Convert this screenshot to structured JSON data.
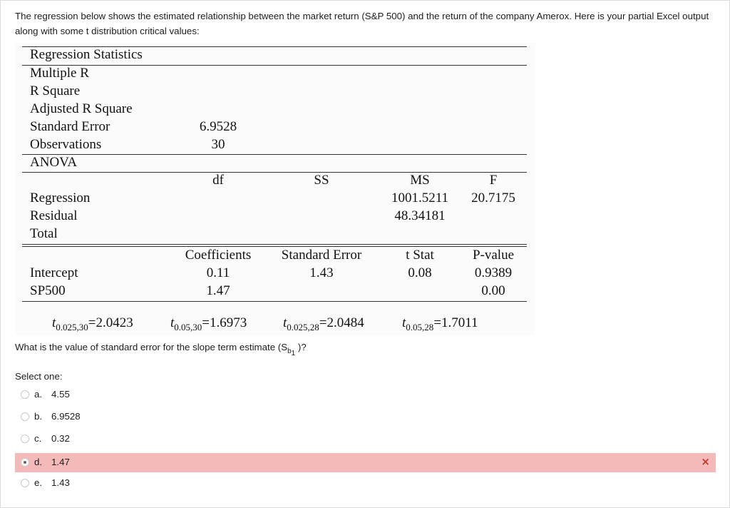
{
  "question": {
    "intro": "The regression below shows the estimated relationship between the market return (S&P 500) and the return of the company Amerox. Here is your partial Excel output along with some t distribution critical values:",
    "prompt_before": "What is the value of standard error for the slope term estimate (S",
    "prompt_sub": "b",
    "prompt_subsub": "1",
    "prompt_after": " )?",
    "select_label": "Select one:"
  },
  "regression_table": {
    "stats_header": "Regression Statistics",
    "stats_rows": [
      {
        "label": "Multiple R",
        "value": ""
      },
      {
        "label": "R Square",
        "value": ""
      },
      {
        "label": "Adjusted R Square",
        "value": ""
      },
      {
        "label": "Standard Error",
        "value": "6.9528"
      },
      {
        "label": "Observations",
        "value": "30"
      }
    ],
    "anova_header": "ANOVA",
    "anova_columns": [
      "df",
      "SS",
      "MS",
      "F"
    ],
    "anova_rows": [
      {
        "label": "Regression",
        "df": "",
        "ss": "",
        "ms": "1001.5211",
        "f": "20.7175"
      },
      {
        "label": "Residual",
        "df": "",
        "ss": "",
        "ms": "48.34181",
        "f": ""
      },
      {
        "label": "Total",
        "df": "",
        "ss": "",
        "ms": "",
        "f": ""
      }
    ],
    "coef_columns": [
      "Coefficients",
      "Standard Error",
      "t Stat",
      "P-value"
    ],
    "coef_rows": [
      {
        "label": "Intercept",
        "coef": "0.11",
        "se": "1.43",
        "t": "0.08",
        "p": "0.9389"
      },
      {
        "label": "SP500",
        "coef": "1.47",
        "se": "",
        "t": "",
        "p": "0.00"
      }
    ]
  },
  "t_values": [
    {
      "sym": "t",
      "sub": "0.025,30",
      "eq": "=",
      "val": "2.0423"
    },
    {
      "sym": "t",
      "sub": "0.05,30",
      "eq": "=",
      "val": "1.6973"
    },
    {
      "sym": "t",
      "sub": "0.025,28",
      "eq": "=",
      "val": "2.0484"
    },
    {
      "sym": "t",
      "sub": "0.05,28",
      "eq": "=",
      "val": "1.7011"
    }
  ],
  "options": [
    {
      "letter": "a.",
      "text": "4.55",
      "selected": false
    },
    {
      "letter": "b.",
      "text": "6.9528",
      "selected": false
    },
    {
      "letter": "c.",
      "text": "0.32",
      "selected": false
    },
    {
      "letter": "d.",
      "text": "1.47",
      "selected": true,
      "mark": "×"
    },
    {
      "letter": "e.",
      "text": "1.43",
      "selected": false
    }
  ],
  "colors": {
    "incorrect_bg": "#f4b9b9",
    "incorrect_mark": "#c0392b"
  }
}
